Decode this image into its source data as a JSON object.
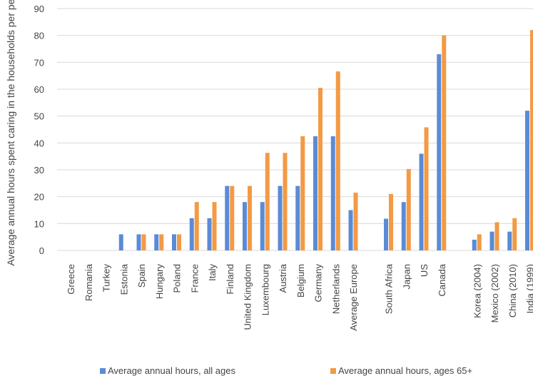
{
  "chart_data": {
    "type": "bar",
    "ylabel": "Average annual hours spent caring in the households per person",
    "ylim": [
      0,
      90
    ],
    "yticks": [
      0,
      10,
      20,
      30,
      40,
      50,
      60,
      70,
      80,
      90
    ],
    "grid": true,
    "legend_position": "bottom",
    "categories": [
      "Greece",
      "Romania",
      "Turkey",
      "Estonia",
      "Spain",
      "Hungary",
      "Poland",
      "France",
      "Italy",
      "Finland",
      "United Kingdom",
      "Luxembourg",
      "Austria",
      "Belgium",
      "Germany",
      "Netherlands",
      "Average Europe",
      "",
      "South Africa",
      "Japan",
      "US",
      "Canada",
      "",
      "Korea (2004)",
      "Mexico (2002)",
      "China (2010)",
      "India (1999)"
    ],
    "series": [
      {
        "name": "Average annual hours, all ages",
        "color": "#5b8bd6",
        "values": [
          0,
          0,
          0,
          6,
          6,
          6,
          6,
          12,
          12,
          24,
          18,
          18,
          24,
          24,
          42.5,
          42.5,
          15,
          null,
          11.8,
          18,
          36,
          73,
          null,
          4,
          7,
          7,
          52
        ]
      },
      {
        "name": "Average annual hours, ages 65+",
        "color": "#f39a45",
        "values": [
          0,
          0,
          0,
          0,
          6,
          6,
          6,
          18,
          18,
          24,
          24,
          36.3,
          36.3,
          42.5,
          60.5,
          66.6,
          21.5,
          null,
          21,
          30.3,
          45.8,
          80,
          null,
          6,
          10.5,
          12,
          82
        ]
      }
    ]
  }
}
